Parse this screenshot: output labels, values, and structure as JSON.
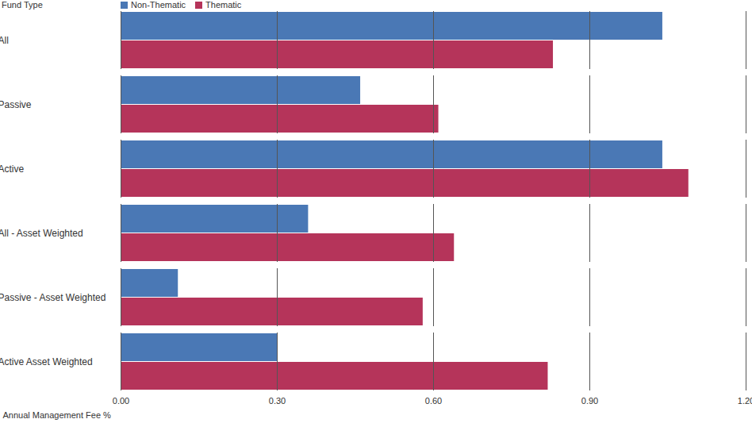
{
  "chart_data": {
    "type": "bar",
    "orientation": "horizontal",
    "y_label": "Fund Type",
    "x_label": "Annual Management Fee %",
    "categories": [
      "All",
      "Passive",
      "Active",
      "All - Asset Weighted",
      "Passive - Asset Weighted",
      "Active Asset Weighted"
    ],
    "series": [
      {
        "name": "Non-Thematic",
        "color": "#4a78b5",
        "values": [
          1.04,
          0.46,
          1.04,
          0.36,
          0.11,
          0.3
        ]
      },
      {
        "name": "Thematic",
        "color": "#b5345a",
        "values": [
          0.83,
          0.61,
          1.09,
          0.64,
          0.58,
          0.82
        ]
      }
    ],
    "xlim": [
      0,
      1.2
    ],
    "xticks": [
      {
        "value": 0,
        "label": "0.00"
      },
      {
        "value": 0.3,
        "label": "0.30"
      },
      {
        "value": 0.6,
        "label": "0.60"
      },
      {
        "value": 0.9,
        "label": "0.90"
      },
      {
        "value": 1.2,
        "label": "1.20"
      }
    ],
    "grid": true,
    "legend": "top-left"
  }
}
